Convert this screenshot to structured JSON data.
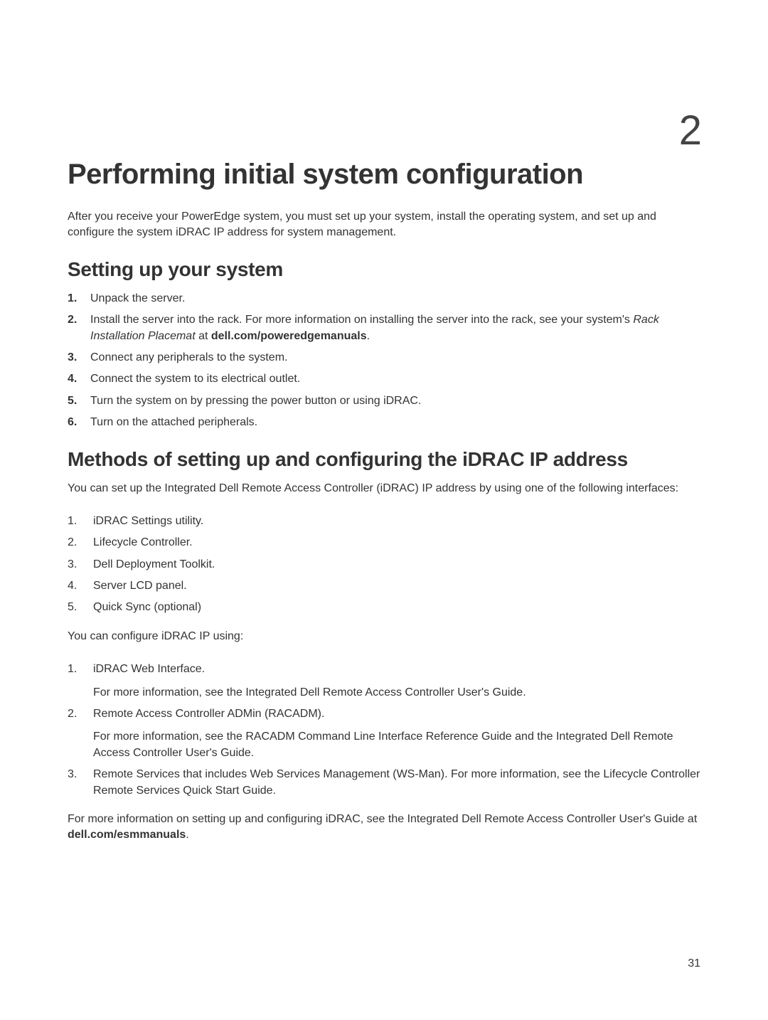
{
  "chapter": {
    "number": "2",
    "title": "Performing initial system configuration",
    "intro": "After you receive your PowerEdge system, you must set up your system, install the operating system, and set up and configure the system iDRAC IP address for system management."
  },
  "section1": {
    "title": "Setting up your system",
    "steps": [
      {
        "n": "1.",
        "text_pre": "Unpack the server."
      },
      {
        "n": "2.",
        "text_pre": "Install the server into the rack. For more information on installing the server into the rack, see your system's ",
        "italic": "Rack Installation Placemat",
        "text_mid": " at ",
        "bold": "dell.com/poweredgemanuals",
        "text_post": "."
      },
      {
        "n": "3.",
        "text_pre": "Connect any peripherals to the system."
      },
      {
        "n": "4.",
        "text_pre": "Connect the system to its electrical outlet."
      },
      {
        "n": "5.",
        "text_pre": "Turn the system on by pressing the power button or using iDRAC."
      },
      {
        "n": "6.",
        "text_pre": "Turn on the attached peripherals."
      }
    ]
  },
  "section2": {
    "title": "Methods of setting up and configuring the iDRAC IP address",
    "intro": "You can set up the Integrated Dell Remote Access Controller (iDRAC) IP address by using one of the following interfaces:",
    "interfaces": [
      {
        "n": "1.",
        "text": "iDRAC Settings utility."
      },
      {
        "n": "2.",
        "text": "Lifecycle Controller."
      },
      {
        "n": "3.",
        "text": "Dell Deployment Toolkit."
      },
      {
        "n": "4.",
        "text": "Server LCD panel."
      },
      {
        "n": "5.",
        "text": "Quick Sync (optional)"
      }
    ],
    "config_intro": "You can configure iDRAC IP using:",
    "configs": [
      {
        "n": "1.",
        "text": "iDRAC Web Interface.",
        "sub": "For more information, see the Integrated Dell Remote Access Controller User's Guide."
      },
      {
        "n": "2.",
        "text": "Remote Access Controller ADMin (RACADM).",
        "sub": "For more information, see the RACADM Command Line Interface Reference Guide and the Integrated Dell Remote Access Controller User's Guide."
      },
      {
        "n": "3.",
        "text": "Remote Services that includes Web Services Management (WS-Man). For more information, see the Lifecycle Controller Remote Services Quick Start Guide."
      }
    ],
    "outro_pre": "For more information on setting up and configuring iDRAC, see the Integrated Dell Remote Access Controller User's Guide at ",
    "outro_bold": "dell.com/esmmanuals",
    "outro_post": "."
  },
  "pageNumber": "31",
  "colors": {
    "text": "#333333",
    "background": "#ffffff"
  },
  "fonts": {
    "body_size": 16,
    "h1_size": 40,
    "h2_size": 28,
    "chapter_num_size": 58
  }
}
